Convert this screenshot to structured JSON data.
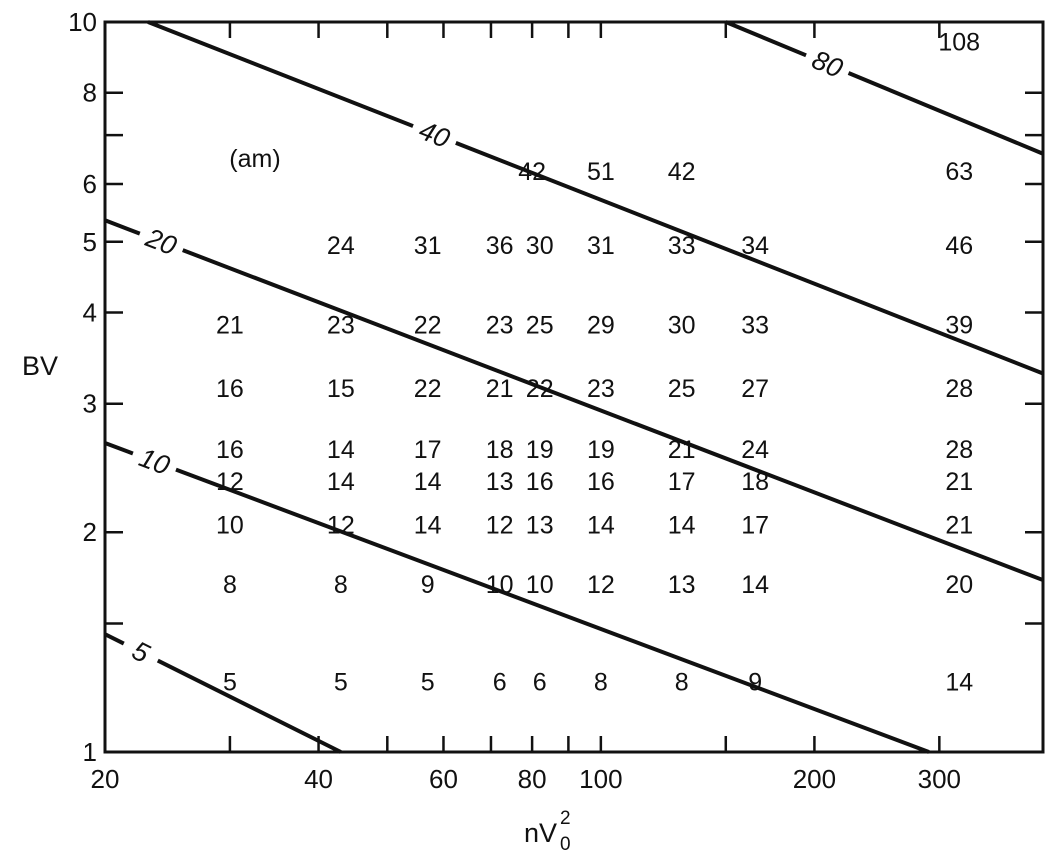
{
  "chart_data": {
    "type": "scatter",
    "title": "",
    "xlabel": "nV",
    "xlabel_sub": "0",
    "xlabel_sup": "2",
    "ylabel": "BV",
    "unit_note": "(am)",
    "x_scale": "log",
    "y_scale": "log",
    "xlim": [
      20,
      420
    ],
    "ylim": [
      1,
      10
    ],
    "grid": false,
    "x_tick_labels": [
      {
        "value": 20,
        "label": "20"
      },
      {
        "value": 40,
        "label": "40"
      },
      {
        "value": 60,
        "label": "60"
      },
      {
        "value": 80,
        "label": "80"
      },
      {
        "value": 100,
        "label": "100"
      },
      {
        "value": 200,
        "label": "200"
      },
      {
        "value": 300,
        "label": "300"
      }
    ],
    "x_minor_ticks": [
      30,
      50,
      70,
      90,
      150
    ],
    "y_tick_labels": [
      {
        "value": 1,
        "label": "1"
      },
      {
        "value": 2,
        "label": "2"
      },
      {
        "value": 3,
        "label": "3"
      },
      {
        "value": 4,
        "label": "4"
      },
      {
        "value": 5,
        "label": "5"
      },
      {
        "value": 6,
        "label": "6"
      },
      {
        "value": 8,
        "label": "8"
      },
      {
        "value": 10,
        "label": "10"
      }
    ],
    "y_minor_ticks": [
      1.5,
      7
    ],
    "contours": [
      {
        "label": "5",
        "points": [
          [
            20,
            1.45
          ],
          [
            43,
            1.0
          ]
        ]
      },
      {
        "label": "10",
        "points": [
          [
            20,
            2.65
          ],
          [
            290,
            1.0
          ]
        ]
      },
      {
        "label": "20",
        "points": [
          [
            20,
            5.35
          ],
          [
            420,
            1.72
          ]
        ]
      },
      {
        "label": "40",
        "points": [
          [
            23,
            10.0
          ],
          [
            420,
            3.3
          ]
        ]
      },
      {
        "label": "80",
        "points": [
          [
            150,
            10.0
          ],
          [
            420,
            6.6
          ]
        ]
      }
    ],
    "rows": [
      {
        "y": 6.25,
        "points": [
          [
            80,
            "42"
          ],
          [
            100,
            "51"
          ],
          [
            130,
            "42"
          ],
          [
            320,
            "63"
          ]
        ]
      },
      {
        "y": 4.95,
        "points": [
          [
            43,
            "24"
          ],
          [
            57,
            "31"
          ],
          [
            72,
            "36"
          ],
          [
            82,
            "30"
          ],
          [
            100,
            "31"
          ],
          [
            130,
            "33"
          ],
          [
            165,
            "34"
          ],
          [
            320,
            "46"
          ]
        ]
      },
      {
        "y": 3.85,
        "points": [
          [
            30,
            "21"
          ],
          [
            43,
            "23"
          ],
          [
            57,
            "22"
          ],
          [
            72,
            "23"
          ],
          [
            82,
            "25"
          ],
          [
            100,
            "29"
          ],
          [
            130,
            "30"
          ],
          [
            165,
            "33"
          ],
          [
            320,
            "39"
          ]
        ]
      },
      {
        "y": 3.15,
        "points": [
          [
            30,
            "16"
          ],
          [
            43,
            "15"
          ],
          [
            57,
            "22"
          ],
          [
            72,
            "21"
          ],
          [
            82,
            "22"
          ],
          [
            100,
            "23"
          ],
          [
            130,
            "25"
          ],
          [
            165,
            "27"
          ],
          [
            320,
            "28"
          ]
        ]
      },
      {
        "y": 2.6,
        "points": [
          [
            30,
            "16"
          ],
          [
            43,
            "14"
          ],
          [
            57,
            "17"
          ],
          [
            72,
            "18"
          ],
          [
            82,
            "19"
          ],
          [
            100,
            "19"
          ],
          [
            130,
            "21"
          ],
          [
            165,
            "24"
          ],
          [
            320,
            "28"
          ]
        ]
      },
      {
        "y": 2.35,
        "points": [
          [
            30,
            "12"
          ],
          [
            43,
            "14"
          ],
          [
            57,
            "14"
          ],
          [
            72,
            "13"
          ],
          [
            82,
            "16"
          ],
          [
            100,
            "16"
          ],
          [
            130,
            "17"
          ],
          [
            165,
            "18"
          ],
          [
            320,
            "21"
          ]
        ]
      },
      {
        "y": 2.05,
        "points": [
          [
            30,
            "10"
          ],
          [
            43,
            "12"
          ],
          [
            57,
            "14"
          ],
          [
            72,
            "12"
          ],
          [
            82,
            "13"
          ],
          [
            100,
            "14"
          ],
          [
            130,
            "14"
          ],
          [
            165,
            "17"
          ],
          [
            320,
            "21"
          ]
        ]
      },
      {
        "y": 1.7,
        "points": [
          [
            30,
            "8"
          ],
          [
            43,
            "8"
          ],
          [
            57,
            "9"
          ],
          [
            72,
            "10"
          ],
          [
            82,
            "10"
          ],
          [
            100,
            "12"
          ],
          [
            130,
            "13"
          ],
          [
            165,
            "14"
          ],
          [
            320,
            "20"
          ]
        ]
      },
      {
        "y": 1.25,
        "points": [
          [
            30,
            "5"
          ],
          [
            43,
            "5"
          ],
          [
            57,
            "5"
          ],
          [
            72,
            "6"
          ],
          [
            82,
            "6"
          ],
          [
            100,
            "8"
          ],
          [
            130,
            "8"
          ],
          [
            165,
            "9"
          ],
          [
            320,
            "14"
          ]
        ]
      }
    ],
    "right_top_value": {
      "x": 320,
      "y": 9.4,
      "label": "108"
    }
  }
}
